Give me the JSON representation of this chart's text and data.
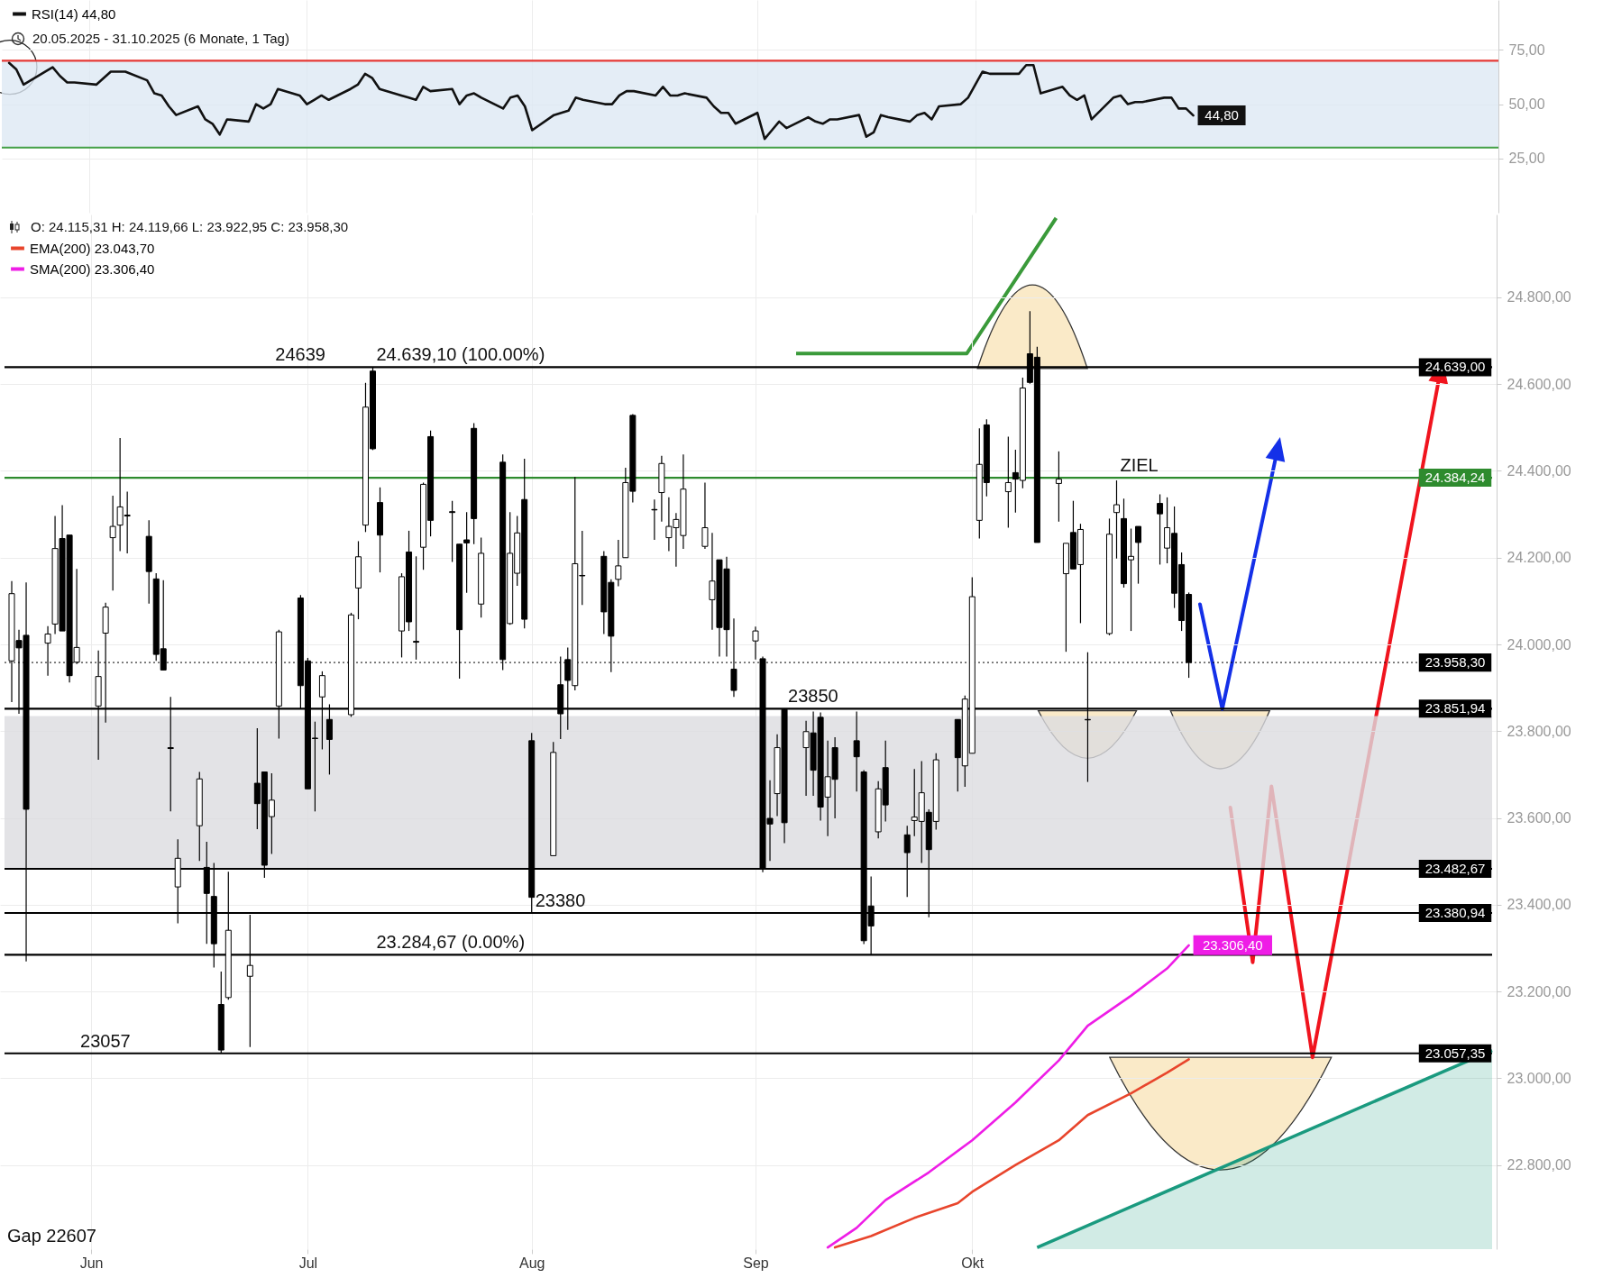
{
  "chart_data": [
    {
      "type": "line",
      "x": [
        "2025-05-21",
        "2025-05-22",
        "2025-05-23",
        "2025-05-26",
        "2025-05-27",
        "2025-05-28",
        "2025-05-29",
        "2025-05-30",
        "2025-06-02",
        "2025-06-03",
        "2025-06-04",
        "2025-06-05",
        "2025-06-06",
        "2025-06-09",
        "2025-06-10",
        "2025-06-11",
        "2025-06-12",
        "2025-06-13",
        "2025-06-16",
        "2025-06-17",
        "2025-06-18",
        "2025-06-19",
        "2025-06-20",
        "2025-06-23",
        "2025-06-24",
        "2025-06-25",
        "2025-06-26",
        "2025-06-27",
        "2025-06-30",
        "2025-07-01",
        "2025-07-02",
        "2025-07-03",
        "2025-07-04",
        "2025-07-07",
        "2025-07-08",
        "2025-07-09",
        "2025-07-10",
        "2025-07-11",
        "2025-07-14",
        "2025-07-15",
        "2025-07-16",
        "2025-07-17",
        "2025-07-18",
        "2025-07-21",
        "2025-07-22",
        "2025-07-23",
        "2025-07-24",
        "2025-07-25",
        "2025-07-28",
        "2025-07-29",
        "2025-07-30",
        "2025-07-31",
        "2025-08-01",
        "2025-08-04",
        "2025-08-05",
        "2025-08-06",
        "2025-08-07",
        "2025-08-08",
        "2025-08-11",
        "2025-08-12",
        "2025-08-13",
        "2025-08-14",
        "2025-08-15",
        "2025-08-18",
        "2025-08-19",
        "2025-08-20",
        "2025-08-21",
        "2025-08-22",
        "2025-08-25",
        "2025-08-26",
        "2025-08-27",
        "2025-08-28",
        "2025-08-29",
        "2025-09-01",
        "2025-09-02",
        "2025-09-03",
        "2025-09-04",
        "2025-09-05",
        "2025-09-08",
        "2025-09-09",
        "2025-09-10",
        "2025-09-11",
        "2025-09-12",
        "2025-09-15",
        "2025-09-16",
        "2025-09-17",
        "2025-09-18",
        "2025-09-19",
        "2025-09-22",
        "2025-09-23",
        "2025-09-24",
        "2025-09-25",
        "2025-09-26",
        "2025-09-29",
        "2025-09-30",
        "2025-10-01",
        "2025-10-02",
        "2025-10-03",
        "2025-10-06",
        "2025-10-07",
        "2025-10-08",
        "2025-10-09",
        "2025-10-10",
        "2025-10-13",
        "2025-10-14",
        "2025-10-15",
        "2025-10-16",
        "2025-10-17",
        "2025-10-20",
        "2025-10-21",
        "2025-10-22",
        "2025-10-23",
        "2025-10-24",
        "2025-10-27",
        "2025-10-28",
        "2025-10-29",
        "2025-10-30",
        "2025-10-31"
      ],
      "series": [
        {
          "name": "RSI(14) 44,80",
          "color": "#111111",
          "values": [
            69,
            66,
            59,
            65,
            67,
            63,
            60,
            60,
            59,
            62,
            65,
            65,
            65,
            61,
            55,
            54,
            49,
            45,
            49,
            43,
            41,
            36,
            43,
            42,
            50,
            48,
            50,
            57,
            54,
            50,
            52,
            54,
            52,
            57,
            59,
            64,
            62,
            57,
            54,
            53,
            52,
            58,
            56,
            57,
            50,
            54,
            55,
            53,
            48,
            53,
            54,
            49,
            38,
            45,
            46,
            47,
            53,
            52,
            50,
            50,
            54,
            56,
            56,
            54,
            58,
            54,
            54,
            55,
            53,
            49,
            46,
            46,
            41,
            46,
            34,
            38,
            42,
            39,
            44,
            42,
            41,
            43,
            43,
            45,
            35,
            37,
            45,
            44,
            42,
            45,
            46,
            43,
            49,
            50,
            53,
            59,
            65,
            64,
            64,
            64,
            68,
            68,
            55,
            58,
            54,
            52,
            54,
            43,
            53,
            54,
            50,
            51,
            51,
            53,
            53,
            48,
            48,
            44.8
          ],
          "value_labels": [
            null,
            null,
            null,
            null,
            null,
            null,
            null,
            null,
            null,
            null,
            null,
            null,
            null,
            null,
            null,
            null,
            null,
            null,
            null,
            null,
            null,
            null,
            null,
            null,
            null,
            null,
            null,
            null,
            null,
            null,
            null,
            null,
            null,
            null,
            null,
            null,
            null,
            null,
            null,
            null,
            null,
            null,
            null,
            null,
            null,
            null,
            null,
            null,
            null,
            null,
            null,
            null,
            null,
            null,
            null,
            null,
            null,
            null,
            null,
            null,
            null,
            null,
            null,
            null,
            null,
            null,
            null,
            null,
            null,
            null,
            null,
            null,
            null,
            null,
            null,
            null,
            null,
            null,
            null,
            null,
            null,
            null,
            null,
            null,
            null,
            null,
            null,
            null,
            null,
            null,
            null,
            null,
            null,
            null,
            null,
            null,
            null,
            null,
            null,
            null,
            null,
            null,
            null,
            null,
            null,
            null,
            null,
            null,
            null,
            null,
            null,
            null,
            null,
            null,
            null,
            null,
            null,
            "44,80"
          ]
        }
      ],
      "annotations": [
        "20.05.2025 - 31.10.2025 (6 Monate, 1 Tag)"
      ],
      "xlim": [
        "2025-05-20",
        "2025-12-12"
      ],
      "xticks": [
        {
          "value": "2025-06-01",
          "label": null
        },
        {
          "value": "2025-07-01",
          "label": null
        },
        {
          "value": "2025-08-01",
          "label": null
        },
        {
          "value": "2025-09-01",
          "label": null
        },
        {
          "value": "2025-10-01",
          "label": null
        }
      ],
      "ylim": [
        0,
        98
      ],
      "yticks": [
        {
          "value": 25,
          "label": "25,00"
        },
        {
          "value": 50,
          "label": "50,00"
        },
        {
          "value": 75,
          "label": "75,00"
        }
      ],
      "bands": [
        {
          "axis": "y",
          "from": 30,
          "to": 70,
          "color": "#dde8f4"
        }
      ],
      "ref_lines": [
        {
          "axis": "y",
          "value": 70,
          "color": "#e53935"
        },
        {
          "axis": "y",
          "value": 30,
          "color": "#43a047"
        }
      ],
      "grid": true,
      "legend": "top left",
      "tick_labels": "y"
    },
    {
      "type": "candlestick",
      "color": "#000000",
      "x": [
        "2025-05-21",
        "2025-05-22",
        "2025-05-23",
        "2025-05-26",
        "2025-05-27",
        "2025-05-28",
        "2025-05-29",
        "2025-05-30",
        "2025-06-02",
        "2025-06-03",
        "2025-06-04",
        "2025-06-05",
        "2025-06-06",
        "2025-06-09",
        "2025-06-10",
        "2025-06-11",
        "2025-06-12",
        "2025-06-13",
        "2025-06-16",
        "2025-06-17",
        "2025-06-18",
        "2025-06-19",
        "2025-06-20",
        "2025-06-23",
        "2025-06-24",
        "2025-06-25",
        "2025-06-26",
        "2025-06-27",
        "2025-06-30",
        "2025-07-01",
        "2025-07-02",
        "2025-07-03",
        "2025-07-04",
        "2025-07-07",
        "2025-07-08",
        "2025-07-09",
        "2025-07-10",
        "2025-07-11",
        "2025-07-14",
        "2025-07-15",
        "2025-07-16",
        "2025-07-17",
        "2025-07-18",
        "2025-07-21",
        "2025-07-22",
        "2025-07-23",
        "2025-07-24",
        "2025-07-25",
        "2025-07-28",
        "2025-07-29",
        "2025-07-30",
        "2025-07-31",
        "2025-08-01",
        "2025-08-04",
        "2025-08-05",
        "2025-08-06",
        "2025-08-07",
        "2025-08-08",
        "2025-08-11",
        "2025-08-12",
        "2025-08-13",
        "2025-08-14",
        "2025-08-15",
        "2025-08-18",
        "2025-08-19",
        "2025-08-20",
        "2025-08-21",
        "2025-08-22",
        "2025-08-25",
        "2025-08-26",
        "2025-08-27",
        "2025-08-28",
        "2025-08-29",
        "2025-09-01",
        "2025-09-02",
        "2025-09-03",
        "2025-09-04",
        "2025-09-05",
        "2025-09-08",
        "2025-09-09",
        "2025-09-10",
        "2025-09-11",
        "2025-09-12",
        "2025-09-15",
        "2025-09-16",
        "2025-09-17",
        "2025-09-18",
        "2025-09-19",
        "2025-09-22",
        "2025-09-23",
        "2025-09-24",
        "2025-09-25",
        "2025-09-26",
        "2025-09-29",
        "2025-09-30",
        "2025-10-01",
        "2025-10-02",
        "2025-10-03",
        "2025-10-06",
        "2025-10-07",
        "2025-10-08",
        "2025-10-09",
        "2025-10-10",
        "2025-10-13",
        "2025-10-14",
        "2025-10-15",
        "2025-10-16",
        "2025-10-17",
        "2025-10-20",
        "2025-10-21",
        "2025-10-22",
        "2025-10-23",
        "2025-10-24",
        "2025-10-27",
        "2025-10-28",
        "2025-10-29",
        "2025-10-30",
        "2025-10-31"
      ],
      "ohlc": [
        [
          23962,
          24146,
          23867,
          24117
        ],
        [
          24009,
          24034,
          23840,
          23992
        ],
        [
          24021,
          24143,
          23269,
          23620
        ],
        [
          24003,
          24042,
          23928,
          24024
        ],
        [
          24047,
          24296,
          24024,
          24221
        ],
        [
          24244,
          24321,
          24031,
          24031
        ],
        [
          24252,
          24252,
          23912,
          23928
        ],
        [
          23959,
          24174,
          23955,
          23993
        ],
        [
          23858,
          23986,
          23734,
          23926
        ],
        [
          24026,
          24096,
          23820,
          24086
        ],
        [
          24246,
          24343,
          24124,
          24272
        ],
        [
          24275,
          24476,
          24215,
          24317
        ],
        [
          24298,
          24352,
          24210,
          24296
        ],
        [
          24249,
          24286,
          24094,
          24168
        ],
        [
          24151,
          24164,
          23962,
          23977
        ],
        [
          23990,
          24148,
          23941,
          23941
        ],
        [
          23762,
          23879,
          23615,
          23760
        ],
        [
          23441,
          23551,
          23357,
          23507
        ],
        [
          23582,
          23706,
          23501,
          23690
        ],
        [
          23486,
          23545,
          23310,
          23426
        ],
        [
          23419,
          23496,
          23255,
          23310
        ],
        [
          23170,
          23246,
          23057.35,
          23065
        ],
        [
          23186,
          23476,
          23181,
          23341
        ],
        [
          23235,
          23377,
          23072,
          23260
        ],
        [
          23680,
          23807,
          23574,
          23633
        ],
        [
          23706,
          23706,
          23462,
          23491
        ],
        [
          23603,
          23703,
          23517,
          23641
        ],
        [
          23858,
          24034,
          23783,
          24029
        ],
        [
          24107,
          24114,
          23851,
          23905
        ],
        [
          23962,
          23969,
          23667,
          23667
        ],
        [
          23784,
          23822,
          23615,
          23783
        ],
        [
          23879,
          23938,
          23758,
          23928
        ],
        [
          23827,
          23862,
          23700,
          23781
        ],
        [
          23838,
          24073,
          23833,
          24068
        ],
        [
          24130,
          24238,
          24058,
          24202
        ],
        [
          24275,
          24603,
          24259,
          24547
        ],
        [
          24630,
          24639.1,
          24448,
          24451
        ],
        [
          24327,
          24362,
          24166,
          24252
        ],
        [
          24031,
          24164,
          23970,
          24156
        ],
        [
          24213,
          24262,
          24031,
          24052
        ],
        [
          24007,
          24203,
          23965,
          24005
        ],
        [
          24224,
          24373,
          24172,
          24369
        ],
        [
          24479,
          24493,
          24249,
          24286
        ],
        [
          24306,
          24331,
          24190,
          24304
        ],
        [
          24231,
          24231,
          23921,
          24034
        ],
        [
          24241,
          24305,
          24119,
          24234
        ],
        [
          24498,
          24510,
          24231,
          24290
        ],
        [
          24093,
          24246,
          24062,
          24210
        ],
        [
          24420,
          24438,
          23941,
          23965
        ],
        [
          24048,
          24305,
          24045,
          24210
        ],
        [
          24164,
          24296,
          24135,
          24257
        ],
        [
          24334,
          24428,
          24037,
          24058
        ],
        [
          23778,
          23796,
          23381,
          23417
        ],
        [
          23513,
          23775,
          23513,
          23751
        ],
        [
          23907,
          23972,
          23782,
          23840
        ],
        [
          23965,
          23993,
          23803,
          23917
        ],
        [
          23905,
          24386,
          23894,
          24186
        ],
        [
          24159,
          24262,
          24091,
          24158
        ],
        [
          24203,
          24215,
          24024,
          24075
        ],
        [
          24143,
          24150,
          23936,
          24019
        ],
        [
          24150,
          24241,
          24134,
          24181
        ],
        [
          24200,
          24407,
          24200,
          24373
        ],
        [
          24528,
          24531,
          24327,
          24353
        ],
        [
          24311,
          24334,
          24241,
          24310
        ],
        [
          24350,
          24435,
          24283,
          24417
        ],
        [
          24246,
          24339,
          24215,
          24272
        ],
        [
          24269,
          24303,
          24179,
          24288
        ],
        [
          24251,
          24438,
          24220,
          24358
        ],
        [
          24226,
          24373,
          24220,
          24269
        ],
        [
          24103,
          24257,
          24034,
          24146
        ],
        [
          24195,
          24195,
          23972,
          24039
        ],
        [
          24174,
          24202,
          23972,
          24034
        ],
        [
          23943,
          24060,
          23879,
          23894
        ],
        [
          24008,
          24041,
          23965,
          24031
        ],
        [
          23967,
          23972,
          23475,
          23483
        ],
        [
          23599,
          23687,
          23501,
          23586
        ],
        [
          23656,
          23793,
          23604,
          23762
        ],
        [
          23850,
          23852,
          23542,
          23589
        ],
        [
          23762,
          23824,
          23651,
          23799
        ],
        [
          23796,
          23845,
          23651,
          23710
        ],
        [
          23832,
          23843,
          23594,
          23625
        ],
        [
          23648,
          23778,
          23558,
          23695
        ],
        [
          23762,
          23786,
          23599,
          23689
        ],
        [
          23778,
          23845,
          23661,
          23741
        ],
        [
          23706,
          23710,
          23309,
          23317
        ],
        [
          23397,
          23465,
          23284.67,
          23351
        ],
        [
          23568,
          23685,
          23553,
          23667
        ],
        [
          23716,
          23778,
          23592,
          23630
        ],
        [
          23561,
          23582,
          23418,
          23520
        ],
        [
          23594,
          23713,
          23558,
          23602
        ],
        [
          23592,
          23731,
          23496,
          23658
        ],
        [
          23613,
          23620,
          23371,
          23527
        ],
        [
          23592,
          23749,
          23573,
          23734
        ],
        [
          23827,
          23827,
          23661,
          23739
        ],
        [
          23720,
          23882,
          23672,
          23874
        ],
        [
          23749,
          24155,
          23749,
          24110
        ],
        [
          24286,
          24498,
          24244,
          24415
        ],
        [
          24506,
          24519,
          24341,
          24373
        ],
        [
          24352,
          24479,
          24269,
          24373
        ],
        [
          24396,
          24449,
          24304,
          24381
        ],
        [
          24378,
          24615,
          24360,
          24591
        ],
        [
          24670,
          24768,
          24601,
          24604
        ],
        [
          24662,
          24686,
          24235,
          24235
        ],
        [
          24371,
          24445,
          24283,
          24381
        ],
        [
          24163,
          24233,
          23983,
          24233
        ],
        [
          24258,
          24331,
          24174,
          24174
        ],
        [
          24184,
          24278,
          24049,
          24265
        ],
        [
          23827,
          23982,
          23683,
          23826
        ],
        [
          24025,
          24290,
          24021,
          24254
        ],
        [
          24304,
          24378,
          24198,
          24322
        ],
        [
          24290,
          24336,
          24131,
          24140
        ],
        [
          24195,
          24267,
          24031,
          24203
        ],
        [
          24272,
          24272,
          24140,
          24235
        ],
        [
          24325,
          24346,
          24184,
          24301
        ],
        [
          24222,
          24339,
          24187,
          24269
        ],
        [
          24256,
          24318,
          24084,
          24118
        ],
        [
          24184,
          24212,
          24031,
          24055
        ],
        [
          24115.31,
          24119.66,
          23922.95,
          23958.3
        ]
      ],
      "series": [
        {
          "name": "EMA(200) 23.043,70",
          "type": "line",
          "color": "#e8452c",
          "x": [
            "2025-09-12",
            "2025-09-17",
            "2025-09-23",
            "2025-09-29",
            "2025-10-01",
            "2025-10-07",
            "2025-10-13",
            "2025-10-17",
            "2025-10-23",
            "2025-10-28",
            "2025-10-31"
          ],
          "values": [
            22610,
            22636,
            22678,
            22712,
            22738,
            22800,
            22857,
            22915,
            22965,
            23013,
            23043.7
          ]
        },
        {
          "name": "SMA(200) 23.306,40",
          "type": "line",
          "color": "#ee1de6",
          "x": [
            "2025-09-11",
            "2025-09-15",
            "2025-09-19",
            "2025-09-25",
            "2025-10-01",
            "2025-10-07",
            "2025-10-13",
            "2025-10-17",
            "2025-10-23",
            "2025-10-28",
            "2025-10-31"
          ],
          "values": [
            22610,
            22655,
            22719,
            22783,
            22857,
            22944,
            23041,
            23121,
            23190,
            23253,
            23306.4
          ],
          "value_labels": [
            null,
            null,
            null,
            null,
            null,
            null,
            null,
            null,
            null,
            null,
            "23.306,40"
          ]
        },
        {
          "type": "area",
          "color": "#1a9a7f",
          "x": [
            "2025-10-10",
            "2025-12-12"
          ],
          "values": [
            22610,
            23064
          ]
        }
      ],
      "annotations": [
        "O: 24.115,31  H: 24.119,66  L: 23.922,95  C: 23.958,30",
        "Gap 22607",
        {
          "text": "24639",
          "x": "2025-06-26",
          "y": 24639
        },
        {
          "text": "24.639,10 (100.00%)",
          "x": "2025-07-10",
          "y": 24639.1
        },
        {
          "text": "ZIEL",
          "x": "2025-10-21",
          "y": 24384.24
        },
        {
          "text": "23850",
          "x": "2025-09-05",
          "y": 23851.94
        },
        {
          "text": "23380",
          "x": "2025-08-01",
          "y": 23380.94
        },
        {
          "text": "23.284,67 (0.00%)",
          "x": "2025-07-10",
          "y": 23284.67
        },
        {
          "text": "23057",
          "x": "2025-05-30",
          "y": 23057.35
        }
      ],
      "xlim": [
        "2025-05-20",
        "2025-12-12"
      ],
      "xticks": [
        {
          "value": "2025-06-01",
          "label": "Jun"
        },
        {
          "value": "2025-07-01",
          "label": "Jul"
        },
        {
          "value": "2025-08-01",
          "label": "Aug"
        },
        {
          "value": "2025-09-01",
          "label": "Sep"
        },
        {
          "value": "2025-10-01",
          "label": "Okt"
        }
      ],
      "ylim": [
        22606,
        24991
      ],
      "yticks": [
        {
          "value": 22800,
          "label": "22.800,00"
        },
        {
          "value": 23000,
          "label": "23.000,00"
        },
        {
          "value": 23200,
          "label": "23.200,00"
        },
        {
          "value": 23400,
          "label": "23.400,00"
        },
        {
          "value": 23600,
          "label": "23.600,00"
        },
        {
          "value": 23800,
          "label": "23.800,00"
        },
        {
          "value": 24000,
          "label": "24.000,00"
        },
        {
          "value": 24200,
          "label": "24.200,00"
        },
        {
          "value": 24400,
          "label": "24.400,00"
        },
        {
          "value": 24600,
          "label": "24.600,00"
        },
        {
          "value": 24800,
          "label": "24.800,00"
        }
      ],
      "bands": [
        {
          "axis": "y",
          "from": 23482.67,
          "to": 23835,
          "color": "#dcdce0"
        }
      ],
      "ref_lines": [
        {
          "axis": "y",
          "value": 24639,
          "label": "24.639,00",
          "color": "#000000"
        },
        {
          "axis": "y",
          "value": 24384.24,
          "label": "24.384,24",
          "color": "#2e8b2e"
        },
        {
          "axis": "y",
          "value": 23958.3,
          "label": "23.958,30",
          "color": "#000000",
          "line_style": "dotted"
        },
        {
          "axis": "y",
          "value": 23851.94,
          "label": "23.851,94",
          "color": "#000000"
        },
        {
          "axis": "y",
          "value": 23482.67,
          "label": "23.482,67",
          "color": "#000000"
        },
        {
          "axis": "y",
          "value": 23380.94,
          "label": "23.380,94",
          "color": "#000000"
        },
        {
          "axis": "y",
          "value": 23284.67,
          "color": "#000000"
        },
        {
          "axis": "y",
          "value": 23057.35,
          "label": "23.057,35",
          "color": "#000000"
        }
      ],
      "grid": true,
      "legend": "top left"
    }
  ]
}
